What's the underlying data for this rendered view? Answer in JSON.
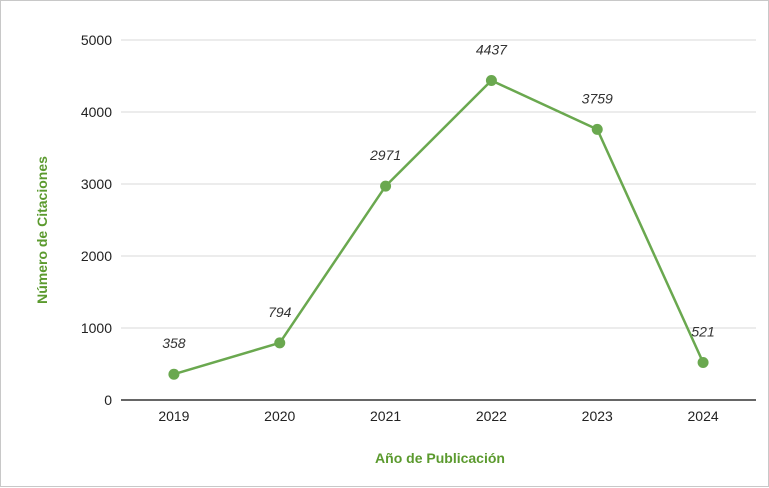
{
  "chart_data": {
    "type": "line",
    "title": "",
    "xlabel": "Año de Publicación",
    "ylabel": "Número de Citaciones",
    "categories": [
      "2019",
      "2020",
      "2021",
      "2022",
      "2023",
      "2024"
    ],
    "series": [
      {
        "values": [
          358,
          794,
          2971,
          4437,
          3759,
          521
        ]
      }
    ],
    "data_labels": [
      "358",
      "794",
      "2971",
      "4437",
      "3759",
      "521"
    ],
    "ylim": [
      0,
      5000
    ],
    "yticks": [
      "0",
      "1000",
      "2000",
      "3000",
      "4000",
      "5000"
    ],
    "grid": true,
    "legend": "none",
    "colors": {
      "series": "#6aa84f",
      "axis_title": "#5b9a2e",
      "grid": "#d9d9d9",
      "axis": "#333333"
    }
  }
}
